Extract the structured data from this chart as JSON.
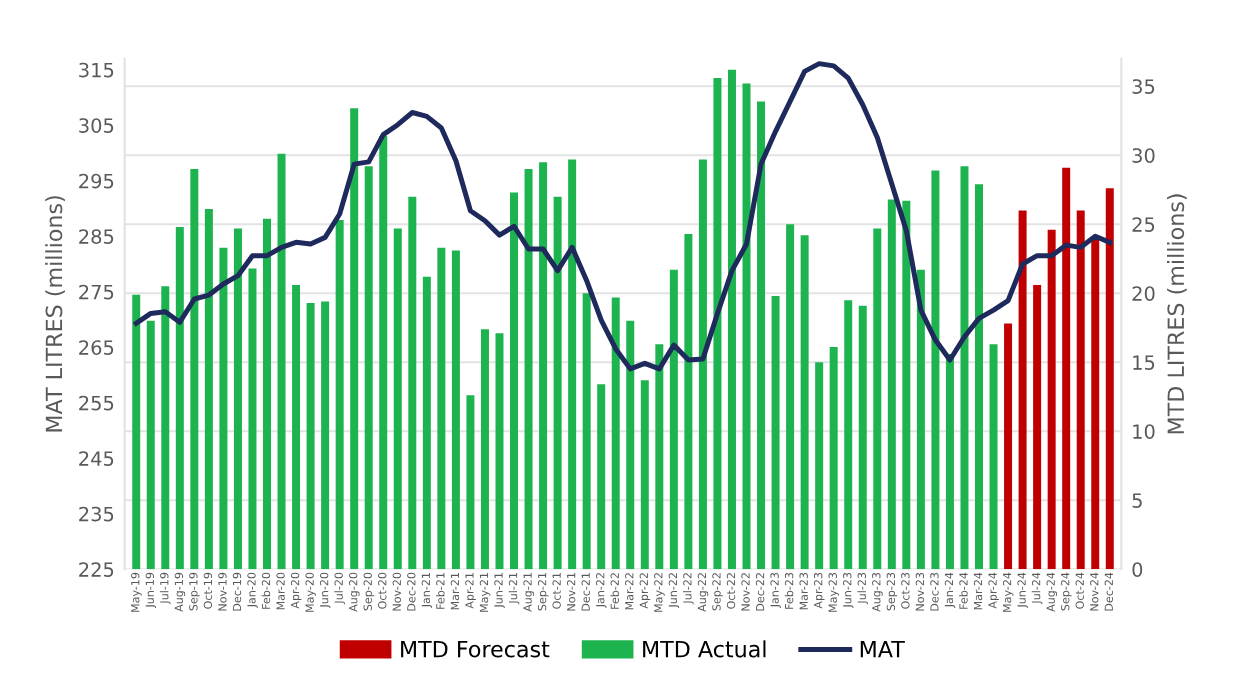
{
  "chart_data": {
    "type": "bar",
    "categories": [
      "May-19",
      "Jun-19",
      "Jul-19",
      "Aug-19",
      "Sep-19",
      "Oct-19",
      "Nov-19",
      "Dec-19",
      "Jan-20",
      "Feb-20",
      "Mar-20",
      "Apr-20",
      "May-20",
      "Jun-20",
      "Jul-20",
      "Aug-20",
      "Sep-20",
      "Oct-20",
      "Nov-20",
      "Dec-20",
      "Jan-21",
      "Feb-21",
      "Mar-21",
      "Apr-21",
      "May-21",
      "Jun-21",
      "Jul-21",
      "Aug-21",
      "Sep-21",
      "Oct-21",
      "Nov-21",
      "Dec-21",
      "Jan-22",
      "Feb-22",
      "Mar-22",
      "Apr-22",
      "May-22",
      "Jun-22",
      "Jul-22",
      "Aug-22",
      "Sep-22",
      "Oct-22",
      "Nov-22",
      "Dec-22",
      "Jan-23",
      "Feb-23",
      "Mar-23",
      "Apr-23",
      "May-23",
      "Jun-23",
      "Jul-23",
      "Aug-23",
      "Sep-23",
      "Oct-23",
      "Nov-23",
      "Dec-23",
      "Jan-24",
      "Feb-24",
      "Mar-24",
      "Apr-24",
      "May-24",
      "Jun-24",
      "Jul-24",
      "Aug-24",
      "Sep-24",
      "Oct-24",
      "Nov-24",
      "Dec-24"
    ],
    "ylabel": "MAT LITRES (millions)",
    "y2label": "MTD LITRES (millions)",
    "ylim": [
      225,
      317
    ],
    "yticks": [
      225,
      235,
      245,
      255,
      265,
      275,
      285,
      295,
      305,
      315
    ],
    "y2lim": [
      0,
      37
    ],
    "y2ticks": [
      0,
      5,
      10,
      15,
      20,
      25,
      30,
      35
    ],
    "grid": "y",
    "legend": "bottom",
    "series": [
      {
        "name": "MTD Forecast",
        "axis": "y2",
        "color": "#c00000",
        "values": [
          null,
          null,
          null,
          null,
          null,
          null,
          null,
          null,
          null,
          null,
          null,
          null,
          null,
          null,
          null,
          null,
          null,
          null,
          null,
          null,
          null,
          null,
          null,
          null,
          null,
          null,
          null,
          null,
          null,
          null,
          null,
          null,
          null,
          null,
          null,
          null,
          null,
          null,
          null,
          null,
          null,
          null,
          null,
          null,
          null,
          null,
          null,
          null,
          null,
          null,
          null,
          null,
          null,
          null,
          null,
          null,
          null,
          null,
          null,
          null,
          17.8,
          26.0,
          20.6,
          24.6,
          29.1,
          26.0,
          24.0,
          27.6
        ]
      },
      {
        "name": "MTD Actual",
        "axis": "y2",
        "color": "#1db34f",
        "values": [
          19.9,
          18.0,
          20.5,
          24.8,
          29.0,
          26.1,
          23.3,
          24.7,
          21.8,
          25.4,
          30.1,
          20.6,
          19.3,
          19.4,
          25.3,
          33.4,
          29.2,
          31.4,
          24.7,
          27.0,
          21.2,
          23.3,
          23.1,
          12.6,
          17.4,
          17.1,
          27.3,
          29.0,
          29.5,
          27.0,
          29.7,
          20.0,
          13.4,
          19.7,
          18.0,
          13.7,
          16.3,
          21.7,
          24.3,
          29.7,
          35.6,
          36.2,
          35.2,
          33.9,
          19.8,
          25.0,
          24.2,
          15.0,
          16.1,
          19.5,
          19.1,
          24.7,
          26.8,
          26.7,
          21.7,
          28.9,
          15.6,
          29.2,
          27.9,
          16.3,
          null,
          null,
          null,
          null,
          null,
          null,
          null,
          null
        ]
      },
      {
        "name": "MAT",
        "type": "line",
        "axis": "y",
        "color": "#1f2a5c",
        "values": [
          269.3,
          271.1,
          271.4,
          269.5,
          273.7,
          274.4,
          276.4,
          277.9,
          281.5,
          281.5,
          283.0,
          283.9,
          283.6,
          284.8,
          289.0,
          298.0,
          298.4,
          303.3,
          305.1,
          307.3,
          306.6,
          304.5,
          298.6,
          289.6,
          287.8,
          285.2,
          286.8,
          282.7,
          282.7,
          278.8,
          283.0,
          277.0,
          269.9,
          264.7,
          261.1,
          262.1,
          261.1,
          265.4,
          262.7,
          262.9,
          271.1,
          278.8,
          283.6,
          298.0,
          303.9,
          309.3,
          314.7,
          316.1,
          315.7,
          313.5,
          308.7,
          302.8,
          294.4,
          286.0,
          271.7,
          266.3,
          262.7,
          266.9,
          270.2,
          271.7,
          273.4,
          280.0,
          281.5,
          281.5,
          283.4,
          283.0,
          285.0,
          283.9
        ]
      }
    ]
  }
}
